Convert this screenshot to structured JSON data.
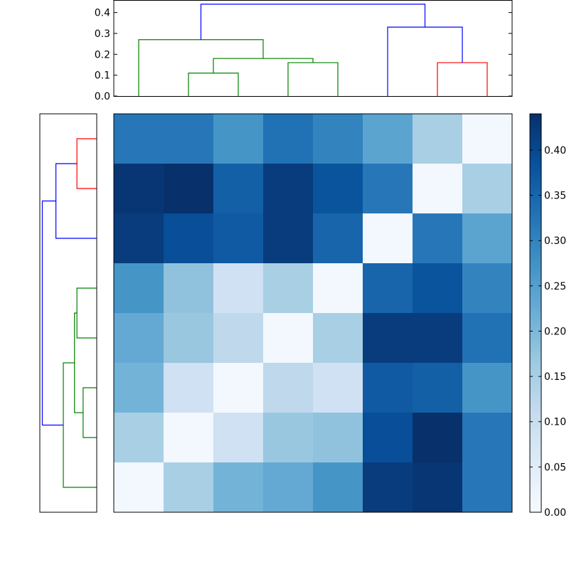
{
  "chart_data": {
    "type": "heatmap",
    "title": "",
    "xlabel": "",
    "ylabel": "",
    "rows_top_to_bottom": [
      [
        0.32,
        0.32,
        0.27,
        0.33,
        0.3,
        0.24,
        0.15,
        0.01
      ],
      [
        0.43,
        0.44,
        0.36,
        0.42,
        0.38,
        0.32,
        0.01,
        0.15
      ],
      [
        0.42,
        0.39,
        0.37,
        0.42,
        0.35,
        0.01,
        0.32,
        0.24
      ],
      [
        0.27,
        0.18,
        0.09,
        0.15,
        0.01,
        0.35,
        0.38,
        0.3
      ],
      [
        0.23,
        0.17,
        0.12,
        0.01,
        0.15,
        0.42,
        0.42,
        0.33
      ],
      [
        0.21,
        0.09,
        0.01,
        0.12,
        0.09,
        0.37,
        0.36,
        0.27
      ],
      [
        0.15,
        0.01,
        0.09,
        0.17,
        0.18,
        0.39,
        0.44,
        0.32
      ],
      [
        0.01,
        0.15,
        0.21,
        0.23,
        0.27,
        0.42,
        0.43,
        0.32
      ]
    ],
    "colorbar": {
      "cmap": "Blues",
      "range": [
        0.0,
        0.44
      ],
      "ticks": [
        0.0,
        0.05,
        0.1,
        0.15,
        0.2,
        0.25,
        0.3,
        0.35,
        0.4
      ],
      "tick_labels": [
        "0.00",
        "0.05",
        "0.10",
        "0.15",
        "0.20",
        "0.25",
        "0.30",
        "0.35",
        "0.40"
      ]
    },
    "dendrogram_top": {
      "ylim": [
        0.0,
        0.46
      ],
      "ticks": [
        0.0,
        0.1,
        0.2,
        0.3,
        0.4
      ],
      "tick_labels": [
        "0.0",
        "0.1",
        "0.2",
        "0.3",
        "0.4"
      ],
      "leaf_count": 8,
      "links": [
        {
          "left": 1.5,
          "right": 2.5,
          "height": 0.11,
          "left_h": 0.0,
          "right_h": 0.0,
          "color": "#008000"
        },
        {
          "left": 3.5,
          "right": 4.5,
          "height": 0.16,
          "left_h": 0.0,
          "right_h": 0.0,
          "color": "#008000"
        },
        {
          "left": 2.0,
          "right": 4.0,
          "height": 0.18,
          "left_h": 0.11,
          "right_h": 0.16,
          "color": "#008000"
        },
        {
          "left": 0.5,
          "right": 3.0,
          "height": 0.27,
          "left_h": 0.0,
          "right_h": 0.18,
          "color": "#008000"
        },
        {
          "left": 6.5,
          "right": 7.5,
          "height": 0.16,
          "left_h": 0.0,
          "right_h": 0.0,
          "color": "#ff0000"
        },
        {
          "left": 5.5,
          "right": 7.0,
          "height": 0.33,
          "left_h": 0.0,
          "right_h": 0.16,
          "color": "#0000ff"
        },
        {
          "left": 1.75,
          "right": 6.25,
          "height": 0.44,
          "left_h": 0.27,
          "right_h": 0.33,
          "color": "#0000ff"
        }
      ]
    },
    "dendrogram_left": {
      "xlim": [
        0.0,
        0.46
      ],
      "leaf_count": 8,
      "links": [
        {
          "top": 0.5,
          "bottom": 1.5,
          "height": 0.16,
          "top_h": 0.0,
          "bottom_h": 0.0,
          "color": "#ff0000"
        },
        {
          "top": 1.0,
          "bottom": 2.5,
          "height": 0.33,
          "top_h": 0.16,
          "bottom_h": 0.0,
          "color": "#0000ff"
        },
        {
          "top": 3.5,
          "bottom": 4.5,
          "height": 0.16,
          "top_h": 0.0,
          "bottom_h": 0.0,
          "color": "#008000"
        },
        {
          "top": 5.5,
          "bottom": 6.5,
          "height": 0.11,
          "top_h": 0.0,
          "bottom_h": 0.0,
          "color": "#008000"
        },
        {
          "top": 4.0,
          "bottom": 6.0,
          "height": 0.18,
          "top_h": 0.16,
          "bottom_h": 0.11,
          "color": "#008000"
        },
        {
          "top": 5.0,
          "bottom": 7.5,
          "height": 0.27,
          "top_h": 0.18,
          "bottom_h": 0.0,
          "color": "#008000"
        },
        {
          "top": 1.75,
          "bottom": 6.25,
          "height": 0.44,
          "top_h": 0.33,
          "bottom_h": 0.27,
          "color": "#0000ff"
        }
      ]
    }
  }
}
